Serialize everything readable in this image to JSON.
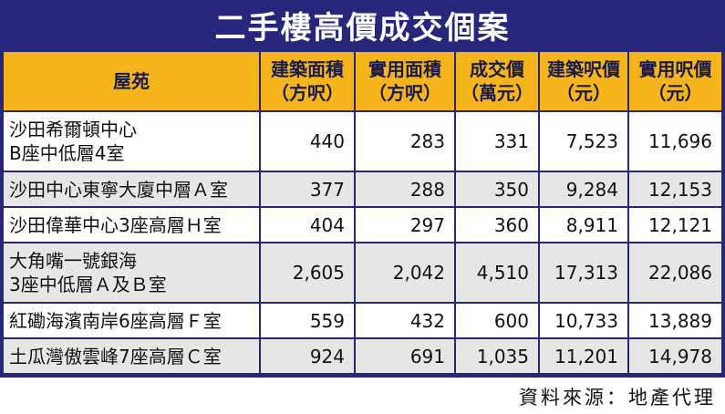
{
  "title": "二手樓高價成交個案",
  "headers": {
    "estate": "屋苑",
    "gross_area": [
      "建築面積",
      "（方呎）"
    ],
    "saleable_area": [
      "實用面積",
      "（方呎）"
    ],
    "price": [
      "成交價",
      "（萬元）"
    ],
    "gross_psf": [
      "建築呎價",
      "（元）"
    ],
    "saleable_psf": [
      "實用呎價",
      "（元）"
    ]
  },
  "rows": [
    {
      "estate": [
        "沙田希爾頓中心",
        "B座中低層4室"
      ],
      "gross_area": "440",
      "saleable_area": "283",
      "price": "331",
      "gross_psf": "7,523",
      "saleable_psf": "11,696"
    },
    {
      "estate": [
        "沙田中心東寧大廈中層Ａ室"
      ],
      "gross_area": "377",
      "saleable_area": "288",
      "price": "350",
      "gross_psf": "9,284",
      "saleable_psf": "12,153"
    },
    {
      "estate": [
        "沙田偉華中心3座高層Ｈ室"
      ],
      "gross_area": "404",
      "saleable_area": "297",
      "price": "360",
      "gross_psf": "8,911",
      "saleable_psf": "12,121"
    },
    {
      "estate": [
        "大角嘴一號銀海",
        "3座中低層Ａ及Ｂ室"
      ],
      "gross_area": "2,605",
      "saleable_area": "2,042",
      "price": "4,510",
      "gross_psf": "17,313",
      "saleable_psf": "22,086"
    },
    {
      "estate": [
        "紅磡海濱南岸6座高層Ｆ室"
      ],
      "gross_area": "559",
      "saleable_area": "432",
      "price": "600",
      "gross_psf": "10,733",
      "saleable_psf": "13,889"
    },
    {
      "estate": [
        "土瓜灣傲雲峰7座高層Ｃ室"
      ],
      "gross_area": "924",
      "saleable_area": "691",
      "price": "1,035",
      "gross_psf": "11,201",
      "saleable_psf": "14,978"
    }
  ],
  "source": "資料來源：地產代理"
}
